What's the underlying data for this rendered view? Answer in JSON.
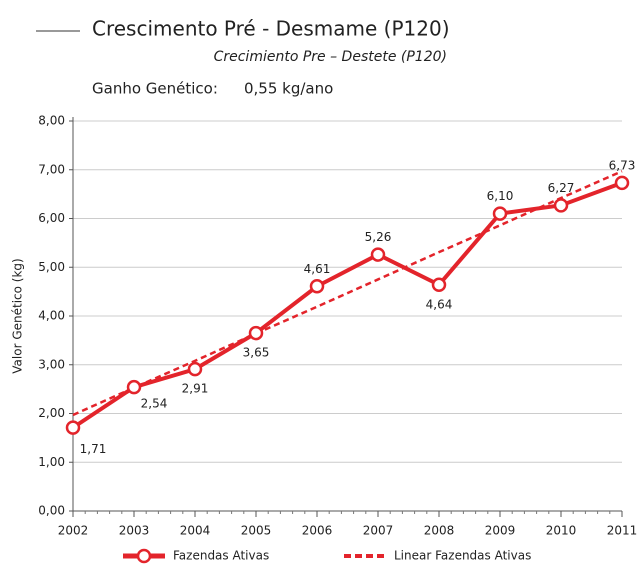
{
  "chart_data": {
    "type": "line",
    "title": "Crescimento Pré - Desmame (P120)",
    "subtitle": "Crecimiento Pre – Destete (P120)",
    "annotation": {
      "label": "Ganho Genético:",
      "value": "0,55 kg/ano"
    },
    "y_label": "Valor Genético (kg)",
    "categories": [
      "2002",
      "2003",
      "2004",
      "2005",
      "2006",
      "2007",
      "2008",
      "2009",
      "2010",
      "2011"
    ],
    "series": [
      {
        "name": "Fazendas Ativas",
        "color": "#e3242b",
        "style": "solid",
        "values": [
          1.71,
          2.54,
          2.91,
          3.65,
          4.61,
          5.26,
          4.64,
          6.1,
          6.27,
          6.73
        ],
        "value_labels": [
          "1,71",
          "2,54",
          "2,91",
          "3,65",
          "4,61",
          "5,26",
          "4,64",
          "6,10",
          "6,27",
          "6,73"
        ]
      },
      {
        "name": "Linear Fazendas Ativas",
        "color": "#e3242b",
        "style": "dashed",
        "values": [
          1.97,
          2.53,
          3.08,
          3.64,
          4.19,
          4.75,
          5.31,
          5.86,
          6.42,
          6.97
        ]
      }
    ],
    "ylim": [
      0,
      8
    ],
    "yticks": [
      {
        "value": 0,
        "label": "0,00"
      },
      {
        "value": 1,
        "label": "1,00"
      },
      {
        "value": 2,
        "label": "2,00"
      },
      {
        "value": 3,
        "label": "3,00"
      },
      {
        "value": 4,
        "label": "4,00"
      },
      {
        "value": 5,
        "label": "5,00"
      },
      {
        "value": 6,
        "label": "6,00"
      },
      {
        "value": 7,
        "label": "7,00"
      },
      {
        "value": 8,
        "label": "8,00"
      }
    ],
    "grid": true
  }
}
